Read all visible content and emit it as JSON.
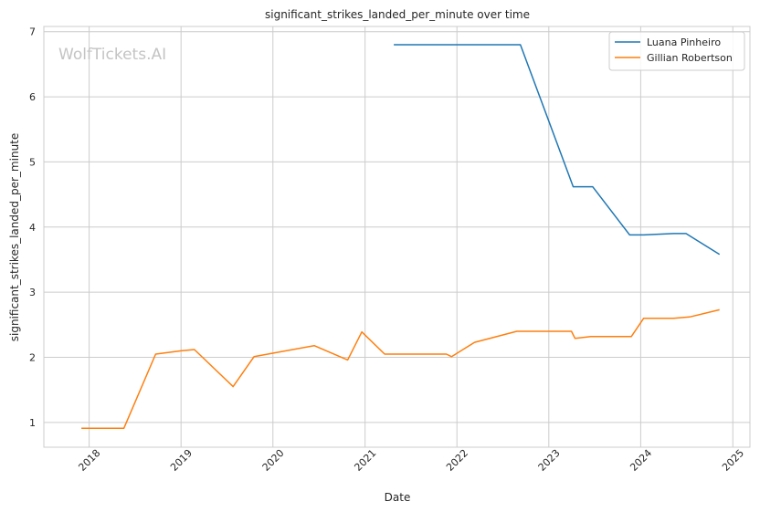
{
  "chart_data": {
    "type": "line",
    "title": "significant_strikes_landed_per_minute over time",
    "xlabel": "Date",
    "ylabel": "significant_strikes_landed_per_minute",
    "watermark": "WolfTickets.AI",
    "x_ticks": [
      "2018",
      "2019",
      "2020",
      "2021",
      "2022",
      "2023",
      "2024",
      "2025"
    ],
    "y_ticks": [
      1,
      2,
      3,
      4,
      5,
      6,
      7
    ],
    "xlim": [
      "2017-07-05",
      "2025-03-10"
    ],
    "ylim": [
      0.62,
      7.08
    ],
    "grid": true,
    "legend_position": "top-right",
    "series": [
      {
        "name": "Luana Pinheiro",
        "color": "#1f77b4",
        "points": [
          [
            "2021-04-25",
            6.8
          ],
          [
            "2022-09-10",
            6.8
          ],
          [
            "2023-04-08",
            4.62
          ],
          [
            "2023-06-24",
            4.62
          ],
          [
            "2023-11-18",
            3.88
          ],
          [
            "2024-01-13",
            3.88
          ],
          [
            "2024-05-11",
            3.9
          ],
          [
            "2024-06-29",
            3.9
          ],
          [
            "2024-11-09",
            3.58
          ]
        ]
      },
      {
        "name": "Gillian Robertson",
        "color": "#ff7f0e",
        "points": [
          [
            "2017-12-01",
            0.91
          ],
          [
            "2018-05-19",
            0.91
          ],
          [
            "2018-09-22",
            2.05
          ],
          [
            "2019-01-01",
            2.1
          ],
          [
            "2019-02-23",
            2.12
          ],
          [
            "2019-07-27",
            1.55
          ],
          [
            "2019-10-18",
            2.01
          ],
          [
            "2020-06-13",
            2.18
          ],
          [
            "2020-10-24",
            1.96
          ],
          [
            "2020-12-19",
            2.39
          ],
          [
            "2021-03-20",
            2.05
          ],
          [
            "2021-11-20",
            2.05
          ],
          [
            "2021-12-11",
            2.01
          ],
          [
            "2022-03-12",
            2.23
          ],
          [
            "2022-08-27",
            2.4
          ],
          [
            "2023-04-01",
            2.4
          ],
          [
            "2023-04-15",
            2.29
          ],
          [
            "2023-06-17",
            2.32
          ],
          [
            "2023-11-25",
            2.32
          ],
          [
            "2024-01-13",
            2.6
          ],
          [
            "2024-05-11",
            2.6
          ],
          [
            "2024-07-13",
            2.62
          ],
          [
            "2024-11-09",
            2.73
          ]
        ]
      }
    ]
  }
}
